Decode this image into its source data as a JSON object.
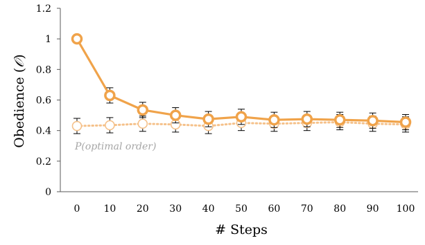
{
  "chart_data": {
    "type": "line",
    "x": [
      0,
      10,
      20,
      30,
      40,
      50,
      60,
      70,
      80,
      90,
      100
    ],
    "xlabel": "# Steps",
    "ylabel": "Obedience (",
    "ylabel_symbol": "𝒪",
    "ylabel_close": ")",
    "ylim": [
      0,
      1.2
    ],
    "yticks": [
      "0",
      "0.2",
      "0.4",
      "0.6",
      "0.8",
      "1",
      "1.2"
    ],
    "xticks": [
      "0",
      "10",
      "20",
      "30",
      "40",
      "50",
      "60",
      "70",
      "80",
      "90",
      "100"
    ],
    "grid": false,
    "legend": "none",
    "annotation": "P(optimal order)",
    "series": [
      {
        "values": [
          1.0,
          0.63,
          0.535,
          0.5,
          0.475,
          0.49,
          0.47,
          0.475,
          0.47,
          0.465,
          0.455
        ],
        "error": [
          0.0,
          0.05,
          0.05,
          0.05,
          0.05,
          0.05,
          0.05,
          0.05,
          0.05,
          0.05,
          0.05
        ],
        "color": "#f0a34a",
        "style": "solid"
      },
      {
        "values": [
          0.43,
          0.435,
          0.445,
          0.44,
          0.43,
          0.45,
          0.445,
          0.45,
          0.455,
          0.445,
          0.44
        ],
        "error": [
          0.05,
          0.05,
          0.05,
          0.05,
          0.05,
          0.05,
          0.05,
          0.05,
          0.05,
          0.05,
          0.05
        ],
        "color": "#f5c18a",
        "style": "dotted"
      }
    ]
  }
}
